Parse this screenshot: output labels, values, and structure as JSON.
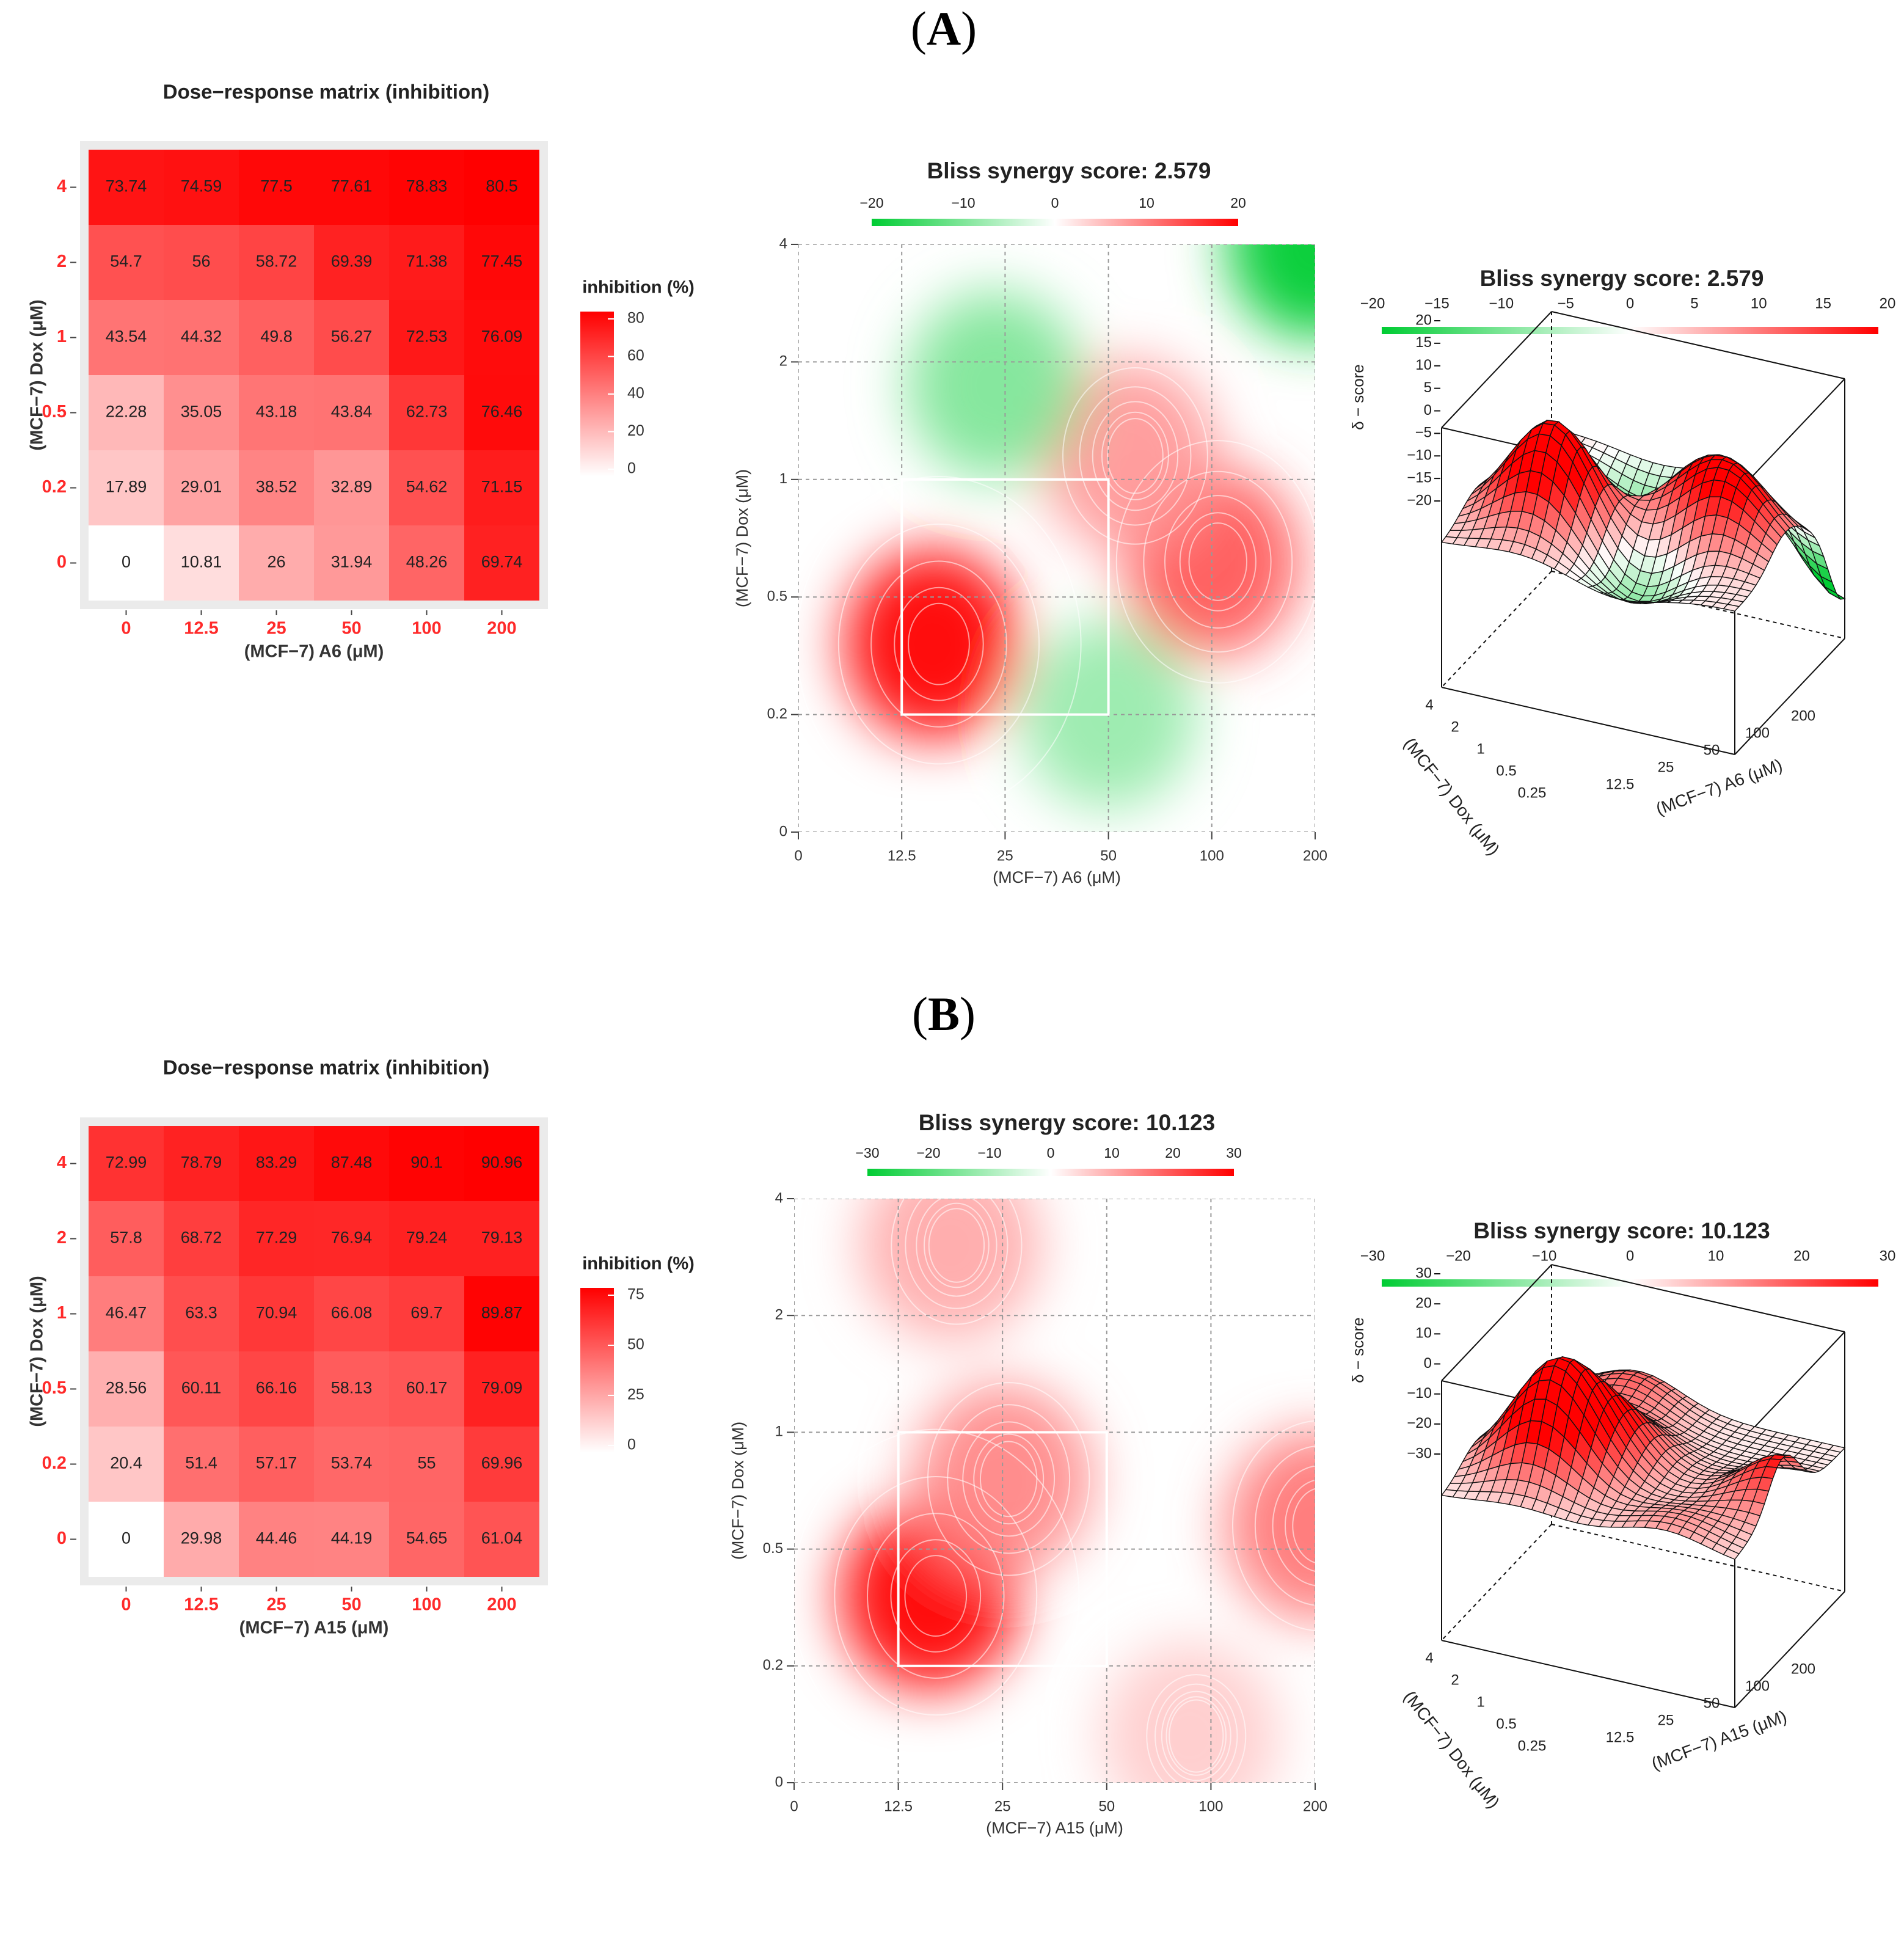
{
  "colors": {
    "synergy_red": "#ff0000",
    "synergy_green": "#00cc33",
    "tick_red": "#ff2a2a",
    "panel_bg": "#ebebeb",
    "grid": "#999999",
    "contour": "#ffffff",
    "mesh": "#111111"
  },
  "panels": [
    {
      "label_open": "(",
      "label_letter": "A",
      "label_close": ")",
      "heatmap": {
        "title": "Dose−response matrix (inhibition)",
        "xlabel": "(MCF−7) A6 (μM)",
        "ylabel": "(MCF−7) Dox (μM)",
        "legend_title": "inhibition (%)",
        "legend_ticks": [
          "80",
          "60",
          "40",
          "20",
          "0"
        ]
      },
      "contour": {
        "title": "Bliss synergy score: 2.579",
        "legend_ticks": [
          "−20",
          "−10",
          "0",
          "10",
          "20"
        ],
        "xlabel": "(MCF−7) A6 (μM)",
        "ylabel": "(MCF−7) Dox (μM)"
      },
      "surface": {
        "title": "Bliss synergy score: 2.579",
        "legend_ticks": [
          "−20",
          "−15",
          "−10",
          "−5",
          "0",
          "5",
          "10",
          "15",
          "20"
        ],
        "zlabel": "δ − score",
        "z_ticks": [
          "20",
          "15",
          "10",
          "5",
          "0",
          "−5",
          "−10",
          "−15",
          "−20"
        ],
        "dox_ticks": [
          "4",
          "2",
          "1",
          "0.5",
          "0.25"
        ],
        "drug_ticks": [
          "12.5",
          "25",
          "50",
          "100",
          "200"
        ],
        "dox_label": "(MCF−7) Dox (μM)",
        "drug_label": "(MCF−7) A6 (μM)"
      }
    },
    {
      "label_open": "(",
      "label_letter": "B",
      "label_close": ")",
      "heatmap": {
        "title": "Dose−response matrix (inhibition)",
        "xlabel": "(MCF−7) A15 (μM)",
        "ylabel": "(MCF−7) Dox (μM)",
        "legend_title": "inhibition (%)",
        "legend_ticks": [
          "75",
          "50",
          "25",
          "0"
        ]
      },
      "contour": {
        "title": "Bliss synergy score: 10.123",
        "legend_ticks": [
          "−30",
          "−20",
          "−10",
          "0",
          "10",
          "20",
          "30"
        ],
        "xlabel": "(MCF−7) A15 (μM)",
        "ylabel": "(MCF−7) Dox (μM)"
      },
      "surface": {
        "title": "Bliss synergy score: 10.123",
        "legend_ticks": [
          "−30",
          "−20",
          "−10",
          "0",
          "10",
          "20",
          "30"
        ],
        "zlabel": "δ − score",
        "z_ticks": [
          "30",
          "20",
          "10",
          "0",
          "−10",
          "−20",
          "−30"
        ],
        "dox_ticks": [
          "4",
          "2",
          "1",
          "0.5",
          "0.25"
        ],
        "drug_ticks": [
          "12.5",
          "25",
          "50",
          "100",
          "200"
        ],
        "dox_label": "(MCF−7) Dox (μM)",
        "drug_label": "(MCF−7) A15 (μM)"
      }
    }
  ],
  "chart_data": [
    {
      "type": "heatmap",
      "title": "Dose−response matrix (inhibition)",
      "xlabel": "(MCF−7) A6 (μM)",
      "ylabel": "(MCF−7) Dox (μM)",
      "x_categories": [
        "0",
        "12.5",
        "25",
        "50",
        "100",
        "200"
      ],
      "y_categories": [
        "4",
        "2",
        "1",
        "0.5",
        "0.2",
        "0"
      ],
      "values": [
        [
          "73.74",
          "74.59",
          "77.5",
          "77.61",
          "78.83",
          "80.5"
        ],
        [
          "54.7",
          "56",
          "58.72",
          "69.39",
          "71.38",
          "77.45"
        ],
        [
          "43.54",
          "44.32",
          "49.8",
          "56.27",
          "72.53",
          "76.09"
        ],
        [
          "22.28",
          "35.05",
          "43.18",
          "43.84",
          "62.73",
          "76.46"
        ],
        [
          "17.89",
          "29.01",
          "38.52",
          "32.89",
          "54.62",
          "71.15"
        ],
        [
          "0",
          "10.81",
          "26",
          "31.94",
          "48.26",
          "69.74"
        ]
      ],
      "scale_max": 80
    },
    {
      "type": "heatmap",
      "title": "Bliss synergy score: 2.579",
      "xlabel": "(MCF−7) A6 (μM)",
      "ylabel": "(MCF−7) Dox (μM)",
      "x_ticks": [
        "0",
        "12.5",
        "25",
        "50",
        "100",
        "200"
      ],
      "y_ticks": [
        "0",
        "0.2",
        "0.5",
        "1",
        "2",
        "4"
      ],
      "score_range": [
        -20,
        20
      ],
      "hotspots": [
        {
          "x": 1.3,
          "y": 1.6,
          "score": 20
        },
        {
          "x": 4.0,
          "y": 2.3,
          "score": 13
        },
        {
          "x": 3.2,
          "y": 3.2,
          "score": 8
        },
        {
          "x": 5.0,
          "y": 5.0,
          "score": -20
        },
        {
          "x": 1.9,
          "y": 3.8,
          "score": -10
        },
        {
          "x": 3.0,
          "y": 1.0,
          "score": -8
        }
      ]
    },
    {
      "type": "heatmap",
      "title": "Bliss synergy score: 2.579",
      "zlabel": "δ − score",
      "xlabel": "(MCF−7) A6 (μM)",
      "ylabel": "(MCF−7) Dox (μM)",
      "z_range": [
        -20,
        20
      ]
    },
    {
      "type": "heatmap",
      "title": "Dose−response matrix (inhibition)",
      "xlabel": "(MCF−7) A15 (μM)",
      "ylabel": "(MCF−7) Dox (μM)",
      "x_categories": [
        "0",
        "12.5",
        "25",
        "50",
        "100",
        "200"
      ],
      "y_categories": [
        "4",
        "2",
        "1",
        "0.5",
        "0.2",
        "0"
      ],
      "values": [
        [
          "72.99",
          "78.79",
          "83.29",
          "87.48",
          "90.1",
          "90.96"
        ],
        [
          "57.8",
          "68.72",
          "77.29",
          "76.94",
          "79.24",
          "79.13"
        ],
        [
          "46.47",
          "63.3",
          "70.94",
          "66.08",
          "69.7",
          "89.87"
        ],
        [
          "28.56",
          "60.11",
          "66.16",
          "58.13",
          "60.17",
          "79.09"
        ],
        [
          "20.4",
          "51.4",
          "57.17",
          "53.74",
          "55",
          "69.96"
        ],
        [
          "0",
          "29.98",
          "44.46",
          "44.19",
          "54.65",
          "61.04"
        ]
      ],
      "scale_max": 91
    },
    {
      "type": "heatmap",
      "title": "Bliss synergy score: 10.123",
      "xlabel": "(MCF−7) A15 (μM)",
      "ylabel": "(MCF−7) Dox (μM)",
      "x_ticks": [
        "0",
        "12.5",
        "25",
        "50",
        "100",
        "200"
      ],
      "y_ticks": [
        "0",
        "0.2",
        "0.5",
        "1",
        "2",
        "4"
      ],
      "score_range": [
        -30,
        30
      ],
      "hotspots": [
        {
          "x": 1.3,
          "y": 1.6,
          "score": 30
        },
        {
          "x": 2.0,
          "y": 2.6,
          "score": 14
        },
        {
          "x": 5.0,
          "y": 2.2,
          "score": 16
        },
        {
          "x": 1.5,
          "y": 4.6,
          "score": 10
        },
        {
          "x": 3.8,
          "y": 0.4,
          "score": 6
        }
      ]
    },
    {
      "type": "heatmap",
      "title": "Bliss synergy score: 10.123",
      "zlabel": "δ − score",
      "xlabel": "(MCF−7) A15 (μM)",
      "ylabel": "(MCF−7) Dox (μM)",
      "z_range": [
        -30,
        30
      ]
    }
  ]
}
